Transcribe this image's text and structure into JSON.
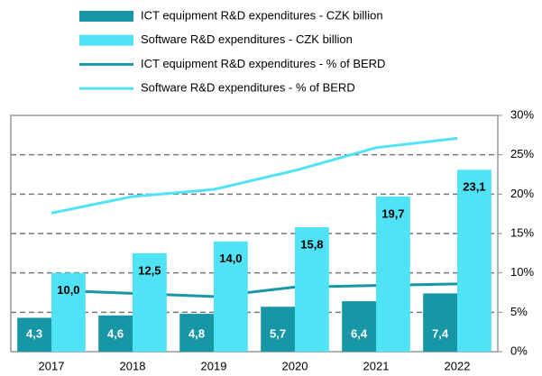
{
  "chart_data": {
    "type": "bar",
    "categories": [
      "2017",
      "2018",
      "2019",
      "2020",
      "2021",
      "2022"
    ],
    "series": [
      {
        "name": "ICT equipment R&D expenditures - CZK billion",
        "type": "bar",
        "color": "#1797a6",
        "values": [
          4.3,
          4.6,
          4.8,
          5.7,
          6.4,
          7.4
        ],
        "value_labels": [
          "4,3",
          "4,6",
          "4,8",
          "5,7",
          "6,4",
          "7,4"
        ]
      },
      {
        "name": "Software R&D expenditures - CZK billion",
        "type": "bar",
        "color": "#4fe3f5",
        "values": [
          10.0,
          12.5,
          14.0,
          15.8,
          19.7,
          23.1
        ],
        "value_labels": [
          "10,0",
          "12,5",
          "14,0",
          "15,8",
          "19,7",
          "23,1"
        ]
      },
      {
        "name": "ICT equipment R&D expenditures - % of BERD",
        "type": "line",
        "axis": "y2",
        "color": "#1797a6",
        "values": [
          7.8,
          7.4,
          7.0,
          8.2,
          8.4,
          8.6
        ]
      },
      {
        "name": "Software R&D expenditures - % of BERD",
        "type": "line",
        "axis": "y2",
        "color": "#4fe3f5",
        "values": [
          17.6,
          19.7,
          20.6,
          23.0,
          25.9,
          27.1
        ]
      }
    ],
    "ylim": [
      0,
      30
    ],
    "y2lim": [
      0,
      30
    ],
    "y2ticks": [
      {
        "value": 0,
        "label": "0%"
      },
      {
        "value": 5,
        "label": "5%"
      },
      {
        "value": 10,
        "label": "10%"
      },
      {
        "value": 15,
        "label": "15%"
      },
      {
        "value": 20,
        "label": "20%"
      },
      {
        "value": 25,
        "label": "25%"
      },
      {
        "value": 30,
        "label": "30%"
      }
    ],
    "grid": true
  }
}
